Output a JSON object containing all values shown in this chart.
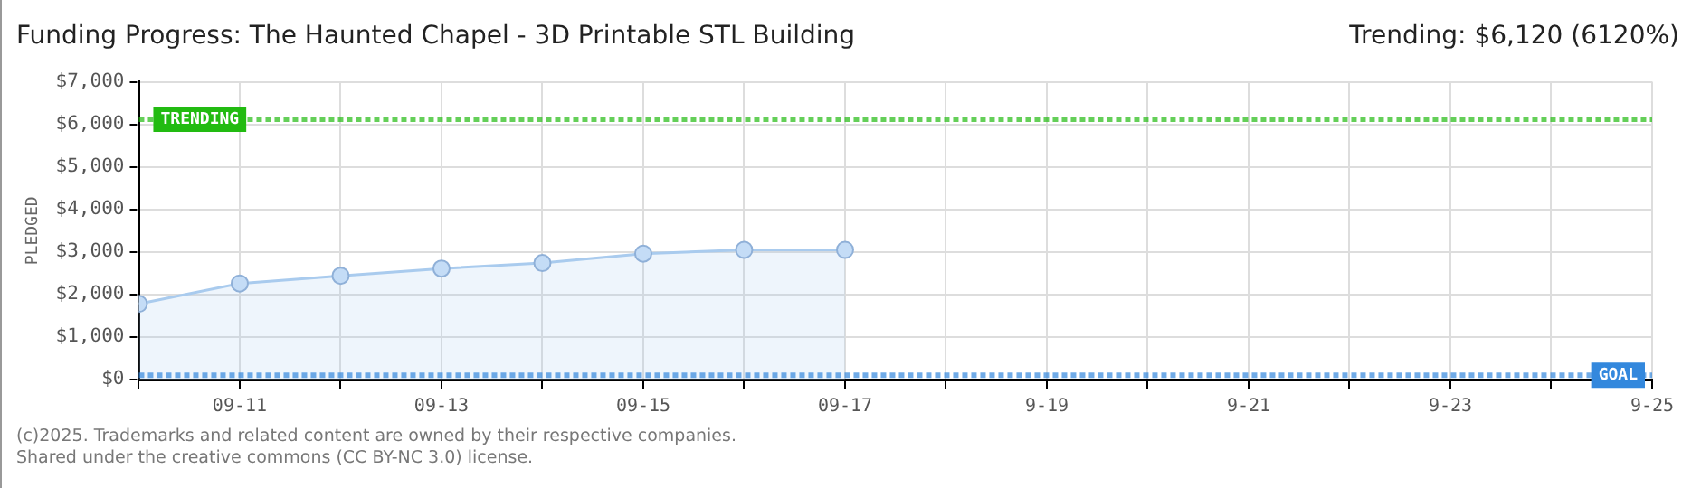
{
  "chart_data": {
    "type": "area",
    "title": "Funding Progress: The Haunted Chapel - 3D Printable STL Building",
    "ylabel": "PLEDGED",
    "annotations": [
      "Trending:  $6,120 (6120%)",
      "(c)2025. Trademarks and related content are owned by their respective companies.",
      "Shared under the creative commons (CC BY-NC 3.0) license."
    ],
    "x": [
      "--09-10",
      "--09-11",
      "--09-12",
      "--09-13",
      "--09-14",
      "--09-15",
      "--09-16",
      "--09-17"
    ],
    "series": [
      {
        "color": "#a9cbee",
        "values": [
          1780,
          2260,
          2440,
          2610,
          2740,
          2960,
          3050,
          3050
        ]
      }
    ],
    "xlim": [
      "--09-10",
      "--09-25"
    ],
    "xticks": [
      {
        "value": "--09-10",
        "label": null
      },
      {
        "value": "--09-11",
        "label": "09-11"
      },
      {
        "value": "--09-12",
        "label": null
      },
      {
        "value": "--09-13",
        "label": "09-13"
      },
      {
        "value": "--09-14",
        "label": null
      },
      {
        "value": "--09-15",
        "label": "09-15"
      },
      {
        "value": "--09-16",
        "label": null
      },
      {
        "value": "--09-17",
        "label": "09-17"
      },
      {
        "value": "--09-18",
        "label": null
      },
      {
        "value": "--09-19",
        "label": "9-19"
      },
      {
        "value": "--09-20",
        "label": null
      },
      {
        "value": "--09-21",
        "label": "9-21"
      },
      {
        "value": "--09-22",
        "label": null
      },
      {
        "value": "--09-23",
        "label": "9-23"
      },
      {
        "value": "--09-24",
        "label": null
      },
      {
        "value": "--09-25",
        "label": "9-25"
      }
    ],
    "ylim": [
      0,
      7000
    ],
    "yticks": [
      {
        "value": 0,
        "label": "$0"
      },
      {
        "value": 1000,
        "label": "$1,000"
      },
      {
        "value": 2000,
        "label": "$2,000"
      },
      {
        "value": 3000,
        "label": "$3,000"
      },
      {
        "value": 4000,
        "label": "$4,000"
      },
      {
        "value": 5000,
        "label": "$5,000"
      },
      {
        "value": 6000,
        "label": "$6,000"
      },
      {
        "value": 7000,
        "label": "$7,000"
      }
    ],
    "ref_lines": [
      {
        "axis": "y",
        "value": 6120,
        "label": "TRENDING",
        "color": "#22bb11",
        "line_style": "dotted"
      },
      {
        "axis": "y",
        "value": 100,
        "label": "GOAL",
        "color": "#3388dd",
        "line_style": "dotted"
      }
    ],
    "grid": true,
    "marker": "circle",
    "legend": false
  }
}
